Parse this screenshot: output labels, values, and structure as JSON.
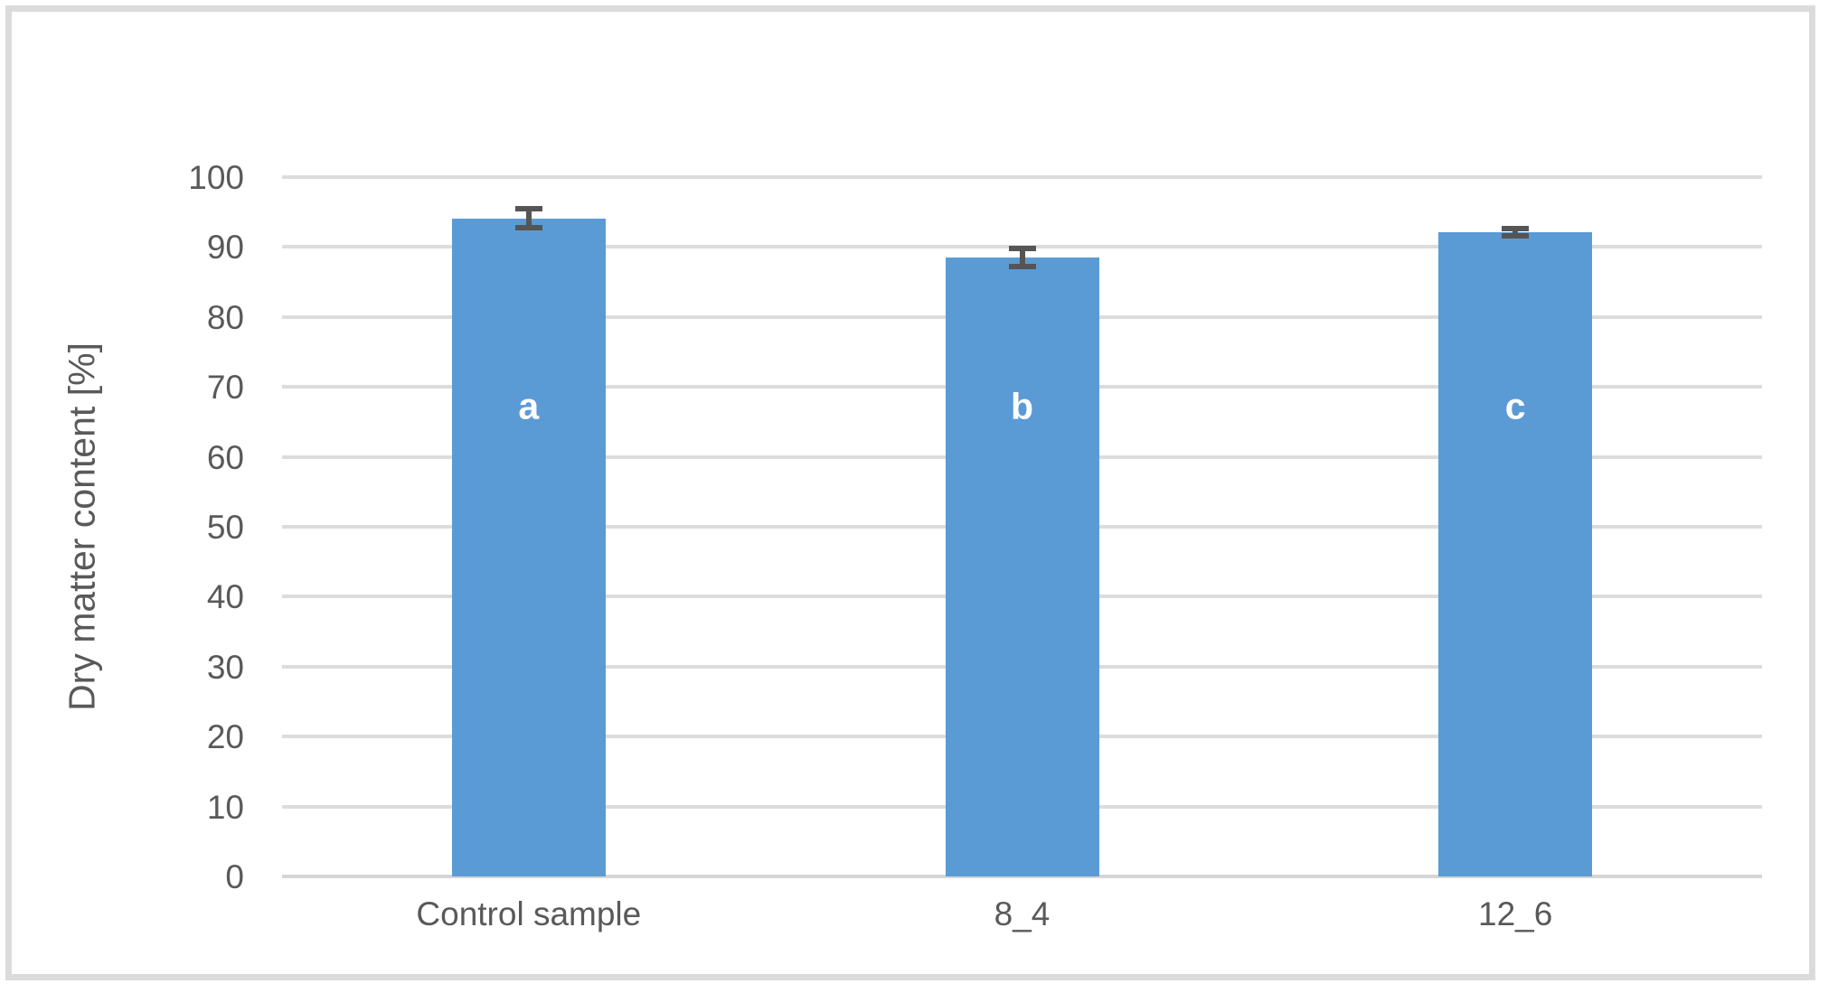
{
  "chart_data": {
    "type": "bar",
    "title": "",
    "xlabel": "",
    "ylabel": "Dry matter content [%]",
    "ylim": [
      0,
      100
    ],
    "yticks": [
      0,
      10,
      20,
      30,
      40,
      50,
      60,
      70,
      80,
      90,
      100
    ],
    "grid": true,
    "legend": false,
    "categories": [
      "Control sample",
      "8_4",
      "12_6"
    ],
    "series": [
      {
        "name": "Dry matter content",
        "values": [
          94.1,
          88.5,
          92.1
        ],
        "errors": [
          1.35,
          1.25,
          0.5
        ],
        "bar_labels": [
          "a",
          "b",
          "c"
        ]
      }
    ],
    "colors": {
      "bar_fill": "#5b9bd5",
      "gridline": "#dcdcdc",
      "axis_line": "#d6d6d6",
      "tick_text": "#595959",
      "error_bar": "#555555",
      "bar_label_text": "#ffffff",
      "frame_border": "#dbdbdb"
    }
  }
}
